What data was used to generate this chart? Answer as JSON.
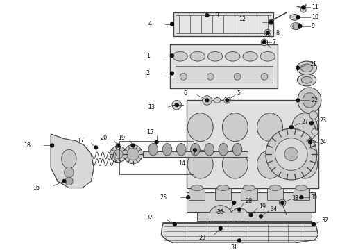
{
  "bg_color": "#ffffff",
  "line_color": "#444444",
  "label_color": "#111111",
  "fig_width": 4.9,
  "fig_height": 3.6,
  "dpi": 100
}
